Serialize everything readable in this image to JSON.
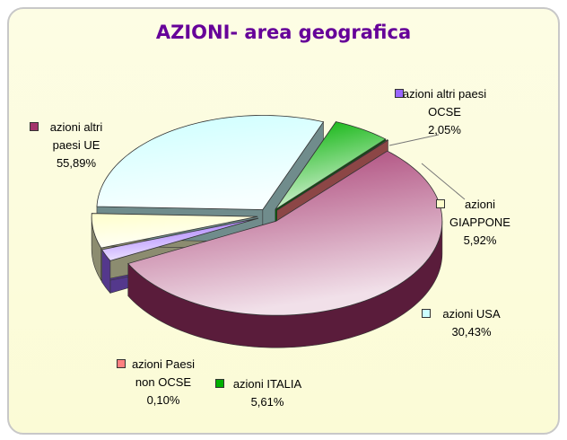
{
  "chart_data": {
    "type": "pie",
    "title": "AZIONI- area geografica",
    "categories": [
      "azioni altri paesi UE",
      "azioni altri paesi OCSE",
      "azioni GIAPPONE",
      "azioni USA",
      "azioni ITALIA",
      "azioni Paesi non OCSE"
    ],
    "values": [
      55.89,
      2.05,
      5.92,
      30.43,
      5.61,
      0.1
    ],
    "value_labels": [
      "55,89%",
      "2,05%",
      "5,92%",
      "30,43%",
      "5,61%",
      "0,10%"
    ],
    "colors": [
      "#a3336b",
      "#9966ff",
      "#ffffcc",
      "#ccffff",
      "#00b000",
      "#ff8080"
    ]
  }
}
